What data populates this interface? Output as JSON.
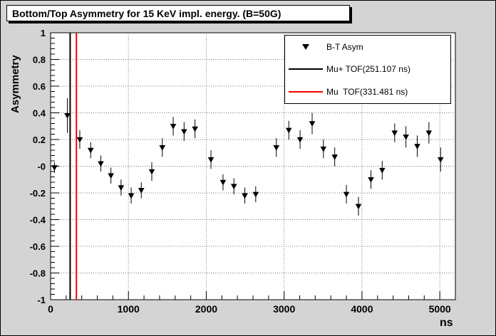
{
  "title": "Bottom/Top Asymmetry for 15 KeV impl. energy. (B=50G)",
  "legend": {
    "entries": [
      {
        "label": "B-T Asym",
        "type": "marker",
        "color": "#000000"
      },
      {
        "label": "Mu+ TOF(251.107 ns)",
        "type": "line",
        "color": "#000000"
      },
      {
        "label": "Mu  TOF(331.481 ns)",
        "type": "line",
        "color": "#ff0000"
      }
    ]
  },
  "chart_data": {
    "type": "scatter",
    "title": "Bottom/Top Asymmetry for 15 KeV impl. energy. (B=50G)",
    "xlabel": "ns",
    "ylabel": "Asymmetry",
    "xlim": [
      0,
      5200
    ],
    "ylim": [
      -1,
      1
    ],
    "grid": true,
    "grid_style": "dotted",
    "legend_position": "top-right",
    "x_ticks": [
      {
        "v": 0,
        "label": "0"
      },
      {
        "v": 1000,
        "label": "1000"
      },
      {
        "v": 2000,
        "label": "2000"
      },
      {
        "v": 3000,
        "label": "3000"
      },
      {
        "v": 4000,
        "label": "4000"
      },
      {
        "v": 5000,
        "label": "5000"
      }
    ],
    "y_ticks": [
      {
        "v": 1,
        "label": "1"
      },
      {
        "v": 0.8,
        "label": "0.8"
      },
      {
        "v": 0.6,
        "label": "0.6"
      },
      {
        "v": 0.4,
        "label": "0.4"
      },
      {
        "v": 0.2,
        "label": "0.2"
      },
      {
        "v": 0,
        "label": "-0"
      },
      {
        "v": -0.2,
        "label": "-0.2"
      },
      {
        "v": -0.4,
        "label": "-0.4"
      },
      {
        "v": -0.6,
        "label": "-0.6"
      },
      {
        "v": -0.8,
        "label": "-0.8"
      },
      {
        "v": -1,
        "label": "-1"
      }
    ],
    "vlines": [
      {
        "x": 251.107,
        "color": "#000000",
        "label": "Mu+ TOF(251.107 ns)"
      },
      {
        "x": 331.481,
        "color": "#ff0000",
        "label": "Mu  TOF(331.481 ns)"
      }
    ],
    "series": [
      {
        "name": "B-T Asym",
        "marker": "triangle-down",
        "color": "#000000",
        "points": [
          [
            50,
            -0.01,
            0.04
          ],
          [
            215,
            0.38,
            0.13
          ],
          [
            375,
            0.2,
            0.07
          ],
          [
            515,
            0.12,
            0.06
          ],
          [
            645,
            0.02,
            0.06
          ],
          [
            775,
            -0.07,
            0.06
          ],
          [
            905,
            -0.16,
            0.06
          ],
          [
            1035,
            -0.22,
            0.06
          ],
          [
            1165,
            -0.18,
            0.06
          ],
          [
            1300,
            -0.04,
            0.07
          ],
          [
            1435,
            0.14,
            0.07
          ],
          [
            1575,
            0.3,
            0.07
          ],
          [
            1715,
            0.26,
            0.07
          ],
          [
            1855,
            0.28,
            0.07
          ],
          [
            2060,
            0.05,
            0.07
          ],
          [
            2215,
            -0.12,
            0.06
          ],
          [
            2355,
            -0.15,
            0.06
          ],
          [
            2495,
            -0.22,
            0.06
          ],
          [
            2635,
            -0.21,
            0.06
          ],
          [
            2900,
            0.14,
            0.07
          ],
          [
            3060,
            0.27,
            0.07
          ],
          [
            3205,
            0.2,
            0.07
          ],
          [
            3360,
            0.32,
            0.08
          ],
          [
            3505,
            0.13,
            0.07
          ],
          [
            3650,
            0.07,
            0.07
          ],
          [
            3800,
            -0.21,
            0.07
          ],
          [
            3955,
            -0.3,
            0.07
          ],
          [
            4115,
            -0.1,
            0.07
          ],
          [
            4260,
            -0.03,
            0.07
          ],
          [
            4420,
            0.25,
            0.07
          ],
          [
            4565,
            0.22,
            0.08
          ],
          [
            4710,
            0.15,
            0.08
          ],
          [
            4860,
            0.25,
            0.08
          ],
          [
            5010,
            0.05,
            0.09
          ]
        ]
      }
    ]
  },
  "colors": {
    "canvas_bg": "#d4d4d4",
    "frame_bg": "#ffffff",
    "grid": "#777777",
    "marker": "#000000",
    "mu_plus_line": "#000000",
    "mu_line": "#ff0000"
  }
}
